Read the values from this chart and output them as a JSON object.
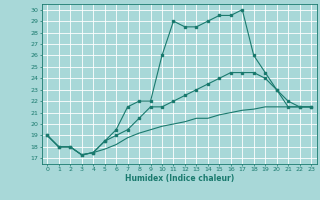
{
  "title": "",
  "xlabel": "Humidex (Indice chaleur)",
  "bg_color": "#a8d8d8",
  "grid_color": "#ffffff",
  "line_color": "#1a7a6e",
  "xlim": [
    -0.5,
    23.5
  ],
  "ylim": [
    16.5,
    30.5
  ],
  "yticks": [
    17,
    18,
    19,
    20,
    21,
    22,
    23,
    24,
    25,
    26,
    27,
    28,
    29,
    30
  ],
  "xticks": [
    0,
    1,
    2,
    3,
    4,
    5,
    6,
    7,
    8,
    9,
    10,
    11,
    12,
    13,
    14,
    15,
    16,
    17,
    18,
    19,
    20,
    21,
    22,
    23
  ],
  "line1_x": [
    0,
    1,
    2,
    3,
    4,
    5,
    6,
    7,
    8,
    9,
    10,
    11,
    12,
    13,
    14,
    15,
    16,
    17,
    18,
    19,
    20,
    21,
    22,
    23
  ],
  "line1_y": [
    19.0,
    18.0,
    18.0,
    17.3,
    17.5,
    18.5,
    19.5,
    21.5,
    22.0,
    22.0,
    26.0,
    29.0,
    28.5,
    28.5,
    29.0,
    29.5,
    29.5,
    30.0,
    26.0,
    24.5,
    23.0,
    21.5,
    21.5,
    21.5
  ],
  "line2_x": [
    0,
    1,
    2,
    3,
    4,
    5,
    6,
    7,
    8,
    9,
    10,
    11,
    12,
    13,
    14,
    15,
    16,
    17,
    18,
    19,
    20,
    21,
    22,
    23
  ],
  "line2_y": [
    19.0,
    18.0,
    18.0,
    17.3,
    17.5,
    18.5,
    19.0,
    19.5,
    20.5,
    21.5,
    21.5,
    22.0,
    22.5,
    23.0,
    23.5,
    24.0,
    24.5,
    24.5,
    24.5,
    24.0,
    23.0,
    22.0,
    21.5,
    21.5
  ],
  "line3_x": [
    0,
    1,
    2,
    3,
    4,
    5,
    6,
    7,
    8,
    9,
    10,
    11,
    12,
    13,
    14,
    15,
    16,
    17,
    18,
    19,
    20,
    21,
    22,
    23
  ],
  "line3_y": [
    19.0,
    18.0,
    18.0,
    17.3,
    17.5,
    17.8,
    18.2,
    18.8,
    19.2,
    19.5,
    19.8,
    20.0,
    20.2,
    20.5,
    20.5,
    20.8,
    21.0,
    21.2,
    21.3,
    21.5,
    21.5,
    21.5,
    21.5,
    21.5
  ]
}
